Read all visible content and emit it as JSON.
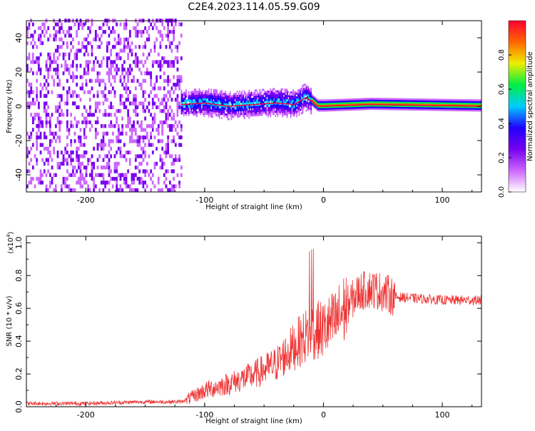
{
  "title": "C2E4.2023.114.05.59.G09",
  "chart_data": [
    {
      "type": "heatmap",
      "xlabel": "Height of straight line (km)",
      "ylabel": "Frequency (Hz)",
      "xlim": [
        -250,
        133
      ],
      "ylim": [
        -50,
        50
      ],
      "x_ticks": [
        -200,
        -100,
        0,
        100
      ],
      "y_ticks": [
        -40,
        -20,
        0,
        20,
        40
      ],
      "colorbar": {
        "label": "Normalized spectral amplitude",
        "range": [
          0,
          1
        ],
        "ticks": [
          0.0,
          0.2,
          0.4,
          0.6,
          0.8
        ],
        "colors": [
          "#ffffff",
          "#cc66ff",
          "#7700ee",
          "#2200ff",
          "#00ccff",
          "#00ee44",
          "#eeee00",
          "#ff6600",
          "#ff0033"
        ]
      },
      "regions": [
        {
          "x_range": [
            -250,
            -120
          ],
          "description_values": {
            "frequency_spread_hz": [
              -50,
              50
            ],
            "amplitude": 0.1
          }
        },
        {
          "x_range": [
            -120,
            -10
          ],
          "description_values": {
            "frequency_spread_hz": [
              -8,
              8
            ],
            "amplitude": 0.45
          }
        },
        {
          "x_range": [
            -10,
            133
          ],
          "description_values": {
            "frequency_spread_hz": [
              -2,
              2
            ],
            "amplitude": 0.9
          }
        }
      ],
      "center_line": {
        "x": [
          -120,
          -100,
          -80,
          -60,
          -40,
          -25,
          -15,
          -10,
          -5,
          0,
          40,
          133
        ],
        "y": [
          1,
          2,
          0,
          1,
          2,
          1,
          5,
          3,
          0,
          0,
          1,
          0
        ]
      }
    },
    {
      "type": "line",
      "xlabel": "Height of straight line (km)",
      "ylabel": "SNR (10 * v/v)",
      "scale_label": "(x10",
      "scale_exp": "4",
      "scale_close": ")",
      "xlim": [
        -250,
        133
      ],
      "ylim": [
        0,
        1.04
      ],
      "x_ticks": [
        -200,
        -100,
        0,
        100
      ],
      "y_ticks": [
        0.0,
        0.2,
        0.4,
        0.6,
        0.8,
        1.0
      ],
      "color": "#ee3333",
      "series": [
        {
          "x": [
            -250,
            -200,
            -150,
            -120,
            -110,
            -100,
            -80,
            -60,
            -40,
            -20,
            -10,
            0,
            10,
            20,
            30,
            40,
            50,
            60,
            80,
            100,
            133
          ],
          "y": [
            0.02,
            0.02,
            0.03,
            0.03,
            0.06,
            0.1,
            0.14,
            0.19,
            0.26,
            0.4,
            0.46,
            0.47,
            0.52,
            0.62,
            0.7,
            0.72,
            0.7,
            0.67,
            0.66,
            0.65,
            0.65
          ]
        }
      ]
    }
  ]
}
